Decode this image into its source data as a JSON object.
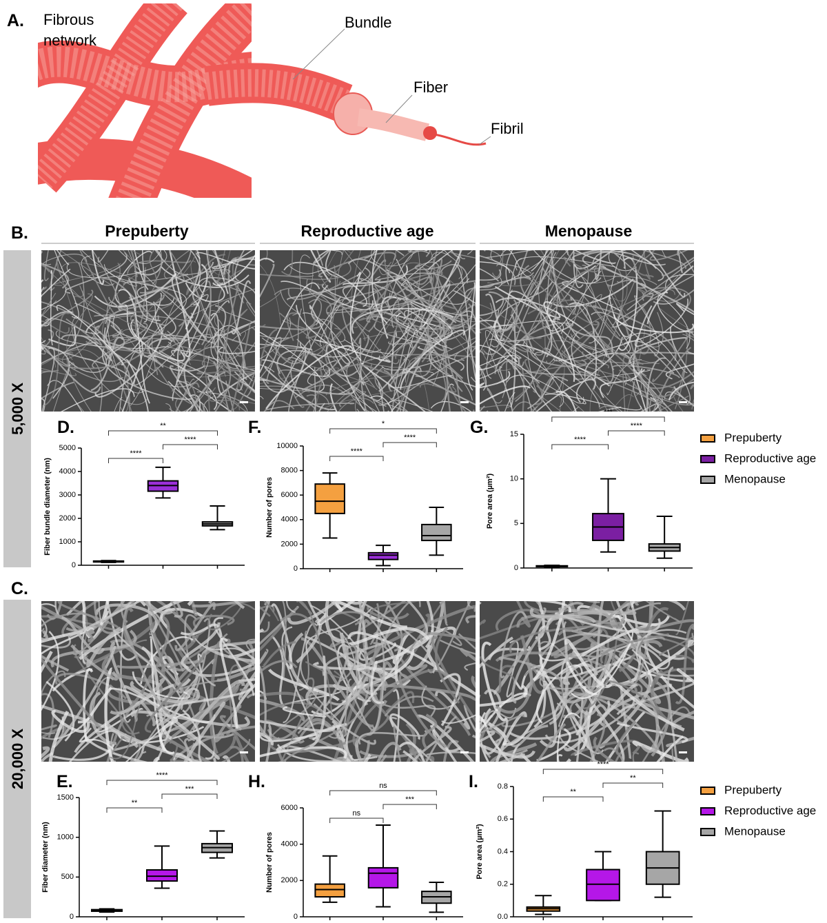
{
  "panel_a": {
    "letter": "A.",
    "network_label": [
      "Fibrous",
      "network"
    ],
    "bundle_label": "Bundle",
    "fiber_label": "Fiber",
    "fibril_label": "Fibril"
  },
  "panel_b": {
    "letter": "B.",
    "columns": [
      "Prepuberty",
      "Reproductive age",
      "Menopause"
    ],
    "magnification": "5,000 X"
  },
  "panel_c": {
    "letter": "C.",
    "magnification": "20,000 X"
  },
  "chart_data": [
    {
      "type": "box",
      "label": "D.",
      "ylabel": "Fiber bundle diameter (nm)",
      "ylim": [
        0,
        5000
      ],
      "yticks": [
        0,
        1000,
        2000,
        3000,
        4000,
        5000
      ],
      "series": [
        {
          "color": "#f4a040",
          "values": [
            120,
            140,
            160,
            180,
            200
          ]
        },
        {
          "color": "#9b30d9",
          "values": [
            2870,
            3160,
            3400,
            3600,
            4180
          ]
        },
        {
          "color": "#a6a6a6",
          "values": [
            1520,
            1680,
            1760,
            1850,
            2530
          ]
        }
      ],
      "annotations": [
        "****",
        "****",
        "**"
      ]
    },
    {
      "type": "box",
      "label": "F.",
      "ylabel": "Number of pores",
      "ylim": [
        0,
        10000
      ],
      "yticks": [
        0,
        2000,
        4000,
        6000,
        8000,
        10000
      ],
      "series": [
        {
          "color": "#f4a040",
          "values": [
            2500,
            4500,
            5500,
            6900,
            7800
          ]
        },
        {
          "color": "#9b30d9",
          "values": [
            250,
            750,
            1100,
            1300,
            1900
          ]
        },
        {
          "color": "#a6a6a6",
          "values": [
            1100,
            2300,
            2700,
            3600,
            5000
          ]
        }
      ],
      "annotations": [
        "****",
        "****",
        "*"
      ]
    },
    {
      "type": "box",
      "label": "G.",
      "ylabel": "Pore area (µm²)",
      "ylim": [
        0,
        15
      ],
      "yticks": [
        0,
        5,
        10,
        15
      ],
      "series": [
        {
          "name": "Prepuberty",
          "color": "#f4a040",
          "values": [
            0.1,
            0.15,
            0.2,
            0.25,
            0.3
          ]
        },
        {
          "name": "Reproductive age",
          "color": "#7b1fa2",
          "values": [
            1.8,
            3.1,
            4.6,
            6.1,
            10
          ]
        },
        {
          "name": "Menopause",
          "color": "#a6a6a6",
          "values": [
            1.1,
            1.9,
            2.3,
            2.7,
            5.8
          ]
        }
      ],
      "annotations": [
        "****",
        "****",
        "***"
      ]
    },
    {
      "type": "box",
      "label": "E.",
      "ylabel": "Fiber diameter (nm)",
      "ylim": [
        0,
        1500
      ],
      "yticks": [
        0,
        500,
        1000,
        1500
      ],
      "series": [
        {
          "color": "#f4a040",
          "values": [
            60,
            70,
            80,
            90,
            100
          ]
        },
        {
          "color": "#b517e8",
          "values": [
            360,
            450,
            510,
            590,
            890
          ]
        },
        {
          "color": "#a6a6a6",
          "values": [
            740,
            810,
            870,
            920,
            1080
          ]
        }
      ],
      "annotations": [
        "**",
        "***",
        "****"
      ]
    },
    {
      "type": "box",
      "label": "H.",
      "ylabel": "Number of pores",
      "ylim": [
        0,
        6000
      ],
      "yticks": [
        0,
        2000,
        4000,
        6000
      ],
      "series": [
        {
          "color": "#f4a040",
          "values": [
            800,
            1100,
            1500,
            1800,
            3350
          ]
        },
        {
          "color": "#b517e8",
          "values": [
            550,
            1600,
            2400,
            2700,
            5050
          ]
        },
        {
          "color": "#a6a6a6",
          "values": [
            250,
            750,
            1100,
            1400,
            1900
          ]
        }
      ],
      "annotations": [
        "ns",
        "***",
        "ns"
      ]
    },
    {
      "type": "box",
      "label": "I.",
      "ylabel": "Pore area (µm²)",
      "ylim": [
        0,
        0.8
      ],
      "yticks": [
        {
          "value": 0,
          "label": "0.0"
        },
        0.2,
        0.4,
        0.6,
        0.8
      ],
      "series": [
        {
          "name": "Prepuberty",
          "color": "#f4a040",
          "values": [
            0.015,
            0.035,
            0.05,
            0.06,
            0.13
          ]
        },
        {
          "name": "Reproductive age",
          "color": "#b517e8",
          "values": [
            0.1,
            0.1,
            0.2,
            0.29,
            0.4
          ]
        },
        {
          "name": "Menopause",
          "color": "#a6a6a6",
          "values": [
            0.12,
            0.2,
            0.3,
            0.4,
            0.65
          ]
        }
      ],
      "annotations": [
        "**",
        "**",
        "****"
      ]
    }
  ]
}
